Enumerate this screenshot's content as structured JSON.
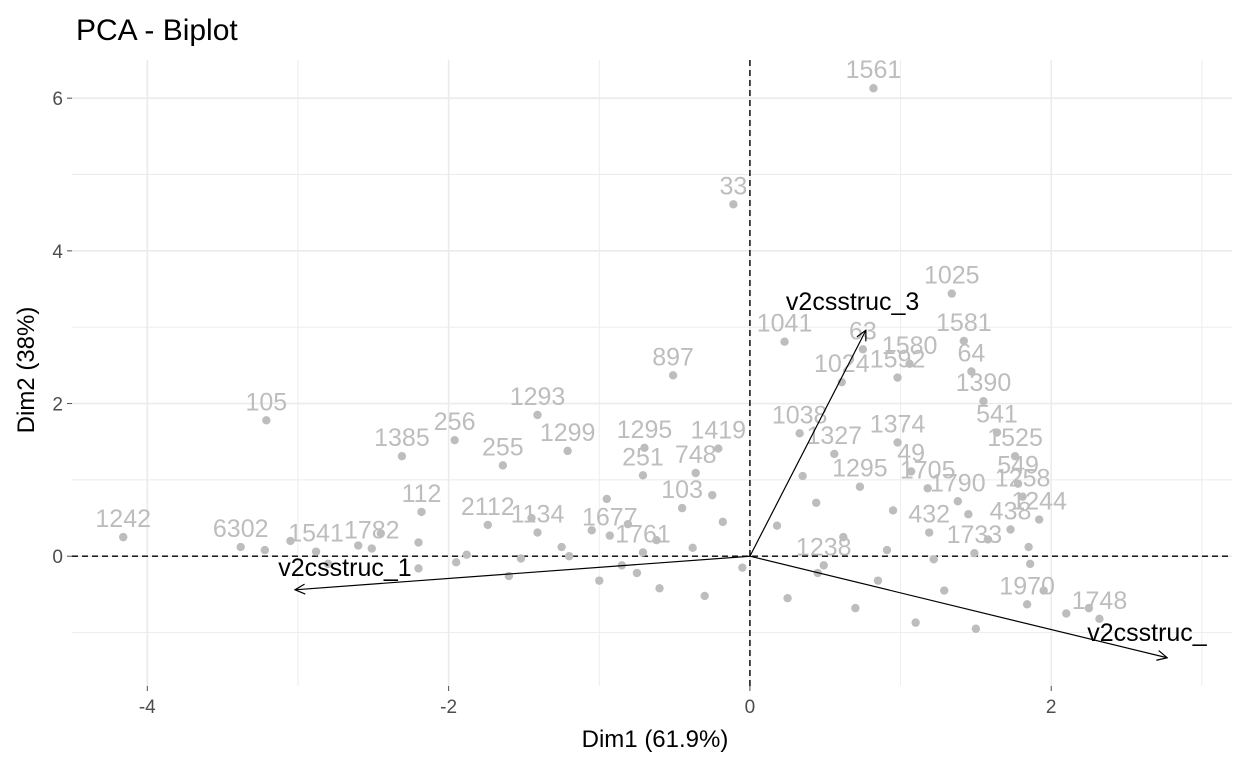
{
  "chart_data": {
    "type": "scatter",
    "title": "PCA - Biplot",
    "xlabel": "Dim1 (61.9%)",
    "ylabel": "Dim2 (38%)",
    "xlim": [
      -4.5,
      3.2
    ],
    "ylim": [
      -1.7,
      6.5
    ],
    "x_ticks": [
      -4,
      -2,
      0,
      2
    ],
    "y_ticks": [
      0,
      2,
      4,
      6
    ],
    "grid": true,
    "reference_lines": {
      "x": 0,
      "y": 0,
      "style": "dashed"
    },
    "colors": {
      "points": "#bdbdbd",
      "arrows": "#000000",
      "grid": "#ebebeb"
    },
    "series": [
      {
        "points": [
          {
            "x": 0.82,
            "y": 6.13,
            "label": "1561"
          },
          {
            "x": -0.11,
            "y": 4.61,
            "label": "33"
          },
          {
            "x": 1.34,
            "y": 3.44,
            "label": "1025"
          },
          {
            "x": 0.23,
            "y": 2.81,
            "label": "1041"
          },
          {
            "x": 1.42,
            "y": 2.82,
            "label": "1581"
          },
          {
            "x": 0.75,
            "y": 2.71,
            "label": "63"
          },
          {
            "x": 1.06,
            "y": 2.52,
            "label": "1580"
          },
          {
            "x": 0.98,
            "y": 2.34,
            "label": "1592"
          },
          {
            "x": 1.47,
            "y": 2.42,
            "label": "64"
          },
          {
            "x": 0.61,
            "y": 2.28,
            "label": "1024"
          },
          {
            "x": -0.51,
            "y": 2.37,
            "label": "897"
          },
          {
            "x": 1.55,
            "y": 2.03,
            "label": "1390"
          },
          {
            "x": -1.41,
            "y": 1.85,
            "label": "1293"
          },
          {
            "x": -3.21,
            "y": 1.78,
            "label": "105"
          },
          {
            "x": 0.33,
            "y": 1.61,
            "label": "1038"
          },
          {
            "x": 1.64,
            "y": 1.62,
            "label": "541"
          },
          {
            "x": -1.96,
            "y": 1.52,
            "label": "256"
          },
          {
            "x": -2.31,
            "y": 1.31,
            "label": "1385"
          },
          {
            "x": 0.98,
            "y": 1.49,
            "label": "1374"
          },
          {
            "x": -0.7,
            "y": 1.42,
            "label": "1295"
          },
          {
            "x": 1.76,
            "y": 1.31,
            "label": "1525"
          },
          {
            "x": -1.21,
            "y": 1.38,
            "label": "1299"
          },
          {
            "x": -0.21,
            "y": 1.41,
            "label": "1419"
          },
          {
            "x": 0.56,
            "y": 1.34,
            "label": "1327"
          },
          {
            "x": 1.07,
            "y": 1.11,
            "label": "49"
          },
          {
            "x": -1.64,
            "y": 1.19,
            "label": "255"
          },
          {
            "x": 1.78,
            "y": 0.95,
            "label": "549"
          },
          {
            "x": -0.36,
            "y": 1.09,
            "label": "748"
          },
          {
            "x": -0.71,
            "y": 1.06,
            "label": "251"
          },
          {
            "x": 1.81,
            "y": 0.78,
            "label": "1258"
          },
          {
            "x": 0.73,
            "y": 0.91,
            "label": "1295"
          },
          {
            "x": 1.18,
            "y": 0.89,
            "label": "1705"
          },
          {
            "x": -2.18,
            "y": 0.58,
            "label": "112"
          },
          {
            "x": 1.38,
            "y": 0.72,
            "label": "1790"
          },
          {
            "x": -4.16,
            "y": 0.25,
            "label": "1242"
          },
          {
            "x": -1.74,
            "y": 0.41,
            "label": "2112"
          },
          {
            "x": 1.92,
            "y": 0.48,
            "label": "1244"
          },
          {
            "x": -0.45,
            "y": 0.63,
            "label": "103"
          },
          {
            "x": 1.73,
            "y": 0.35,
            "label": "438"
          },
          {
            "x": -3.38,
            "y": 0.12,
            "label": "6302"
          },
          {
            "x": -1.41,
            "y": 0.31,
            "label": "1134"
          },
          {
            "x": 1.19,
            "y": 0.31,
            "label": "432"
          },
          {
            "x": -2.51,
            "y": 0.1,
            "label": "1782"
          },
          {
            "x": -2.88,
            "y": 0.06,
            "label": "1541"
          },
          {
            "x": -0.93,
            "y": 0.27,
            "label": "1677"
          },
          {
            "x": 1.49,
            "y": 0.04,
            "label": "1733"
          },
          {
            "x": -0.71,
            "y": 0.05,
            "label": "1761"
          },
          {
            "x": 0.49,
            "y": -0.12,
            "label": "1238"
          },
          {
            "x": 1.84,
            "y": -0.63,
            "label": "1970"
          },
          {
            "x": 2.32,
            "y": -0.82,
            "label": "1748"
          },
          {
            "x": -3.22,
            "y": 0.08
          },
          {
            "x": -2.6,
            "y": 0.14
          },
          {
            "x": -2.2,
            "y": 0.18
          },
          {
            "x": -1.88,
            "y": 0.02
          },
          {
            "x": -1.52,
            "y": -0.03
          },
          {
            "x": -1.2,
            "y": 0.0
          },
          {
            "x": -1.05,
            "y": 0.34
          },
          {
            "x": -0.81,
            "y": 0.42
          },
          {
            "x": -0.62,
            "y": 0.21
          },
          {
            "x": -0.38,
            "y": 0.11
          },
          {
            "x": -0.18,
            "y": 0.45
          },
          {
            "x": 0.18,
            "y": 0.4
          },
          {
            "x": 0.44,
            "y": 0.7
          },
          {
            "x": 0.62,
            "y": 0.25
          },
          {
            "x": 0.91,
            "y": 0.08
          },
          {
            "x": 1.22,
            "y": -0.04
          },
          {
            "x": 1.58,
            "y": 0.22
          },
          {
            "x": 1.86,
            "y": -0.1
          },
          {
            "x": -2.8,
            "y": -0.1
          },
          {
            "x": -2.2,
            "y": -0.16
          },
          {
            "x": -1.6,
            "y": -0.26
          },
          {
            "x": -1.0,
            "y": -0.32
          },
          {
            "x": -0.6,
            "y": -0.42
          },
          {
            "x": -0.3,
            "y": -0.52
          },
          {
            "x": 0.25,
            "y": -0.55
          },
          {
            "x": 0.7,
            "y": -0.68
          },
          {
            "x": 1.1,
            "y": -0.87
          },
          {
            "x": 1.5,
            "y": -0.95
          },
          {
            "x": 2.1,
            "y": -0.75
          },
          {
            "x": 1.95,
            "y": -0.45
          },
          {
            "x": 1.29,
            "y": -0.45
          },
          {
            "x": 0.85,
            "y": -0.32
          },
          {
            "x": 0.45,
            "y": -0.22
          },
          {
            "x": -0.05,
            "y": -0.15
          },
          {
            "x": -0.85,
            "y": -0.12
          },
          {
            "x": -1.95,
            "y": -0.08
          },
          {
            "x": -3.05,
            "y": 0.2
          },
          {
            "x": -1.45,
            "y": 0.5
          },
          {
            "x": -0.95,
            "y": 0.75
          },
          {
            "x": -0.25,
            "y": 0.8
          },
          {
            "x": 0.35,
            "y": 1.05
          },
          {
            "x": 0.95,
            "y": 0.6
          },
          {
            "x": 1.45,
            "y": 0.55
          },
          {
            "x": 1.85,
            "y": 0.12
          },
          {
            "x": 2.25,
            "y": -0.68
          },
          {
            "x": -0.75,
            "y": -0.22
          },
          {
            "x": -1.25,
            "y": 0.12
          },
          {
            "x": -2.45,
            "y": 0.3
          }
        ]
      }
    ],
    "variables": [
      {
        "name": "v2csstruc_1",
        "x": -3.02,
        "y": -0.44
      },
      {
        "name": "v2csstruc_3",
        "x": 0.77,
        "y": 2.96
      },
      {
        "name": "v2csstruc_",
        "x": 2.77,
        "y": -1.33
      }
    ]
  }
}
